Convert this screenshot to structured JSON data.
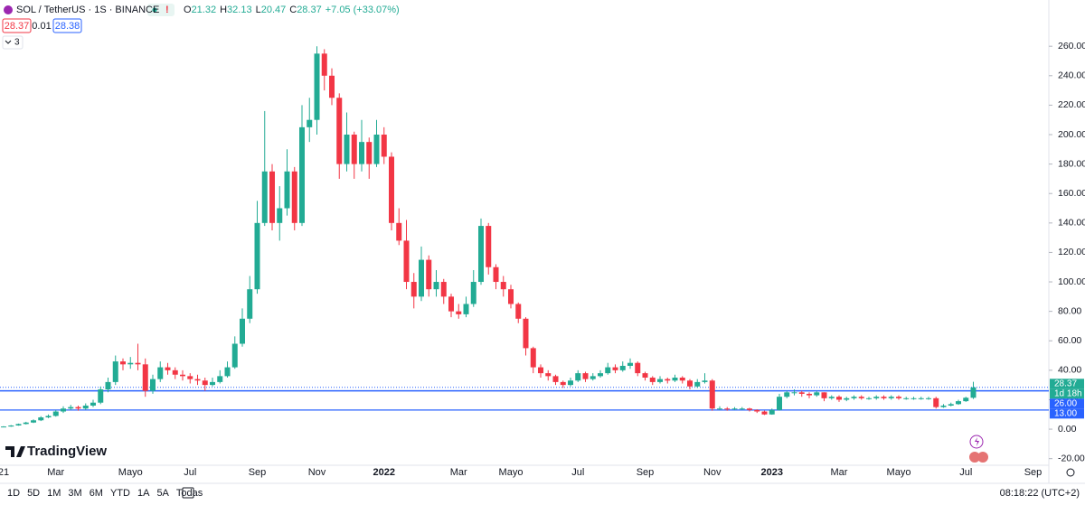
{
  "header": {
    "symbol": "SOL / TetherUS · 1S · BINANCE",
    "ohlc_letters": [
      "O",
      "H",
      "L",
      "C"
    ],
    "change": "+7.05 (+33.07%)",
    "bid": "28.37",
    "spread": "0.01",
    "ask": "28.38",
    "indicators": "3"
  },
  "chart_data": {
    "type": "candlestick",
    "categories": [
      "21",
      null,
      null,
      null,
      null,
      null,
      null,
      "Mar",
      null,
      null,
      null,
      null,
      null,
      null,
      null,
      null,
      null,
      "Mayo",
      null,
      null,
      null,
      null,
      null,
      null,
      null,
      "Jul",
      null,
      null,
      null,
      null,
      null,
      null,
      null,
      null,
      "Sep",
      null,
      null,
      null,
      null,
      null,
      null,
      null,
      "Nov",
      null,
      null,
      null,
      null,
      null,
      null,
      null,
      null,
      "2022",
      null,
      null,
      null,
      null,
      null,
      null,
      null,
      null,
      null,
      "Mar",
      null,
      null,
      null,
      null,
      null,
      null,
      "Mayo",
      null,
      null,
      null,
      null,
      null,
      null,
      null,
      null,
      "Jul",
      null,
      null,
      null,
      null,
      null,
      null,
      null,
      null,
      "Sep",
      null,
      null,
      null,
      null,
      null,
      null,
      null,
      null,
      "Nov",
      null,
      null,
      null,
      null,
      null,
      null,
      null,
      "2023",
      null,
      null,
      null,
      null,
      null,
      null,
      null,
      null,
      "Mar",
      null,
      null,
      null,
      null,
      null,
      null,
      null,
      "Mayo",
      null,
      null,
      null,
      null,
      null,
      null,
      null,
      null,
      "Jul",
      null,
      null,
      null,
      null,
      null,
      null,
      null,
      null,
      "Sep"
    ],
    "open": [
      1.5,
      1.8,
      2.5,
      3.5,
      4.5,
      6,
      8,
      9,
      12,
      14,
      15,
      14,
      16,
      18,
      27,
      32,
      46,
      44,
      45,
      44,
      26,
      34,
      42,
      40,
      37,
      36,
      34,
      33,
      30,
      32,
      36,
      42,
      58,
      75,
      95,
      140,
      175,
      140,
      150,
      175,
      140,
      205,
      210,
      255,
      240,
      225,
      180,
      200,
      180,
      195,
      180,
      200,
      185,
      140,
      128,
      100,
      90,
      115,
      95,
      100,
      90,
      80,
      78,
      85,
      100,
      138,
      110,
      100,
      95,
      85,
      75,
      55,
      42,
      38,
      36,
      32,
      30,
      33,
      38,
      34,
      36,
      38,
      42,
      40,
      43,
      45,
      38,
      35,
      32,
      34,
      33,
      35,
      33,
      29,
      32,
      33,
      14,
      14,
      13.5,
      14,
      14,
      13,
      12,
      10,
      13,
      22,
      25,
      25,
      24,
      23,
      25,
      21,
      22,
      20,
      21,
      22,
      21,
      21,
      22,
      21,
      22,
      21,
      21,
      21,
      21,
      21,
      15,
      16,
      17,
      19,
      21.32,
      null,
      null,
      null,
      null,
      null,
      null,
      null,
      null
    ],
    "high": [
      2,
      2.8,
      3.8,
      5,
      6.6,
      8.8,
      10,
      13,
      15.5,
      16.5,
      16,
      17.5,
      20,
      29,
      35,
      50,
      48,
      49,
      58,
      48,
      37,
      46,
      45,
      42,
      40,
      38,
      37,
      35,
      35,
      40,
      46,
      63,
      82,
      104,
      155,
      216,
      180,
      165,
      190,
      178,
      220,
      225,
      260,
      258,
      245,
      228,
      215,
      202,
      210,
      198,
      210,
      205,
      188,
      150,
      142,
      106,
      124,
      118,
      108,
      102,
      92,
      85,
      90,
      108,
      143,
      140,
      112,
      104,
      98,
      86,
      76,
      56,
      44,
      40,
      37,
      33,
      35,
      40,
      39,
      38,
      40,
      45,
      44,
      46,
      48,
      46,
      39,
      36,
      36,
      35,
      37,
      36,
      34,
      34,
      38,
      34,
      15.5,
      15,
      15,
      15,
      14.5,
      13.5,
      12.5,
      14,
      24,
      26,
      27,
      26,
      25,
      26,
      25,
      23,
      23,
      22,
      23,
      23,
      22,
      23,
      23,
      23,
      23,
      22,
      22,
      22,
      22,
      22,
      17,
      18,
      20,
      22,
      32.13,
      null,
      null,
      null,
      null,
      null,
      null,
      null,
      null
    ],
    "low": [
      1.4,
      1.6,
      2.3,
      3.2,
      4.2,
      5.5,
      7.5,
      8.5,
      11,
      13,
      12.5,
      13,
      15,
      17,
      25,
      30,
      40,
      41,
      40,
      22,
      24,
      32,
      37,
      34,
      33,
      31,
      30,
      26,
      29,
      31,
      35,
      41,
      56,
      72,
      92,
      138,
      135,
      128,
      145,
      135,
      138,
      195,
      200,
      230,
      220,
      170,
      175,
      170,
      175,
      170,
      178,
      180,
      135,
      125,
      95,
      82,
      87,
      90,
      90,
      85,
      76,
      75,
      76,
      83,
      98,
      105,
      95,
      90,
      82,
      72,
      50,
      38,
      35,
      33,
      30,
      28,
      29,
      32,
      32,
      33,
      35,
      37,
      38,
      39,
      41,
      36,
      33,
      30,
      31,
      31,
      32,
      31,
      27,
      28,
      31,
      12.5,
      13,
      12.5,
      13,
      13,
      12,
      11,
      9.6,
      9.8,
      12.5,
      21,
      23,
      22,
      21,
      22,
      19,
      20,
      18.5,
      19,
      20,
      20,
      20,
      20,
      20,
      20,
      20,
      20,
      20,
      20,
      20,
      14,
      14.5,
      15.5,
      16.5,
      18.5,
      20.47,
      null,
      null,
      null,
      null,
      null,
      null,
      null,
      null
    ],
    "close": [
      1.8,
      2.5,
      3.5,
      4.5,
      6,
      8,
      9,
      12,
      14,
      15,
      14,
      16,
      18,
      27,
      32,
      46,
      44,
      45,
      44,
      26,
      34,
      42,
      40,
      37,
      36,
      34,
      33,
      30,
      32,
      36,
      42,
      58,
      75,
      95,
      140,
      175,
      140,
      150,
      175,
      140,
      205,
      210,
      255,
      240,
      225,
      180,
      200,
      180,
      195,
      180,
      200,
      185,
      140,
      128,
      100,
      90,
      115,
      95,
      100,
      90,
      80,
      78,
      85,
      100,
      138,
      110,
      100,
      95,
      85,
      75,
      55,
      42,
      38,
      36,
      32,
      30,
      33,
      38,
      34,
      36,
      38,
      42,
      40,
      43,
      45,
      38,
      35,
      32,
      34,
      33,
      35,
      33,
      29,
      32,
      33,
      14,
      14,
      13.5,
      14,
      14,
      13,
      12,
      10,
      13,
      22,
      25,
      25,
      24,
      23,
      25,
      21,
      22,
      20,
      21,
      22,
      21,
      21,
      22,
      21,
      22,
      21,
      21,
      21,
      21,
      21,
      15,
      16,
      17,
      19,
      21.32,
      28.37,
      null,
      null,
      null,
      null,
      null,
      null,
      null,
      null
    ],
    "up_color": "#22ab94",
    "down_color": "#f23645",
    "ylim": [
      -24.5,
      291.4
    ],
    "yticks": [
      {
        "value": -20,
        "label": "-20.00"
      },
      {
        "value": 0,
        "label": "0.00"
      },
      {
        "value": 20,
        "label": "20.00"
      },
      {
        "value": 40,
        "label": "40.00"
      },
      {
        "value": 60,
        "label": "60.00"
      },
      {
        "value": 80,
        "label": "80.00"
      },
      {
        "value": 100,
        "label": "100.00"
      },
      {
        "value": 120,
        "label": "120.00"
      },
      {
        "value": 140,
        "label": "140.00"
      },
      {
        "value": 160,
        "label": "160.00"
      },
      {
        "value": 180,
        "label": "180.00"
      },
      {
        "value": 200,
        "label": "200.00"
      },
      {
        "value": 220,
        "label": "220.00"
      },
      {
        "value": 240,
        "label": "240.00"
      },
      {
        "value": 260,
        "label": "260.00"
      }
    ],
    "grid": false,
    "price_lines": [
      {
        "value": 26,
        "label": "26.00",
        "color": "#2962ff"
      },
      {
        "value": 13,
        "label": "13.00",
        "color": "#2962ff"
      }
    ],
    "countdown": "1d 18h"
  },
  "logo": "TradingView",
  "footer": {
    "ranges": [
      "1D",
      "5D",
      "1M",
      "3M",
      "6M",
      "YTD",
      "1A",
      "5A",
      "Todas"
    ],
    "clock": "08:18:22 (UTC+2)"
  }
}
